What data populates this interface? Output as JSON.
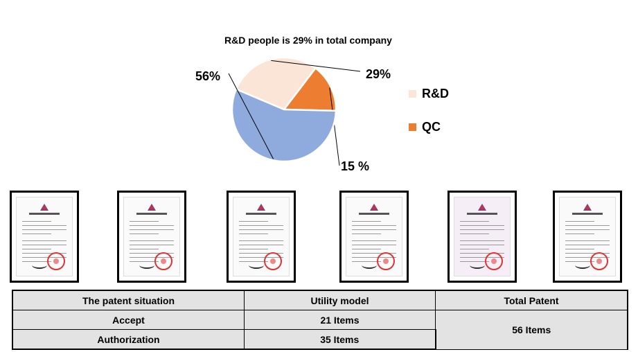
{
  "chart_data": {
    "type": "pie",
    "title": "R&D people is 29% in total company",
    "slices": [
      {
        "name": "R&D",
        "value": 29,
        "label": "29%",
        "color": "#fbe5d6"
      },
      {
        "name": "QC",
        "value": 15,
        "label": "15 %",
        "color": "#ed7d31"
      },
      {
        "name": "",
        "value": 56,
        "label": "56%",
        "color": "#8faadc"
      }
    ],
    "legend": {
      "position": "right",
      "entries": [
        "R&D",
        "QC"
      ]
    }
  },
  "certificates": [
    {
      "type": "patent-certificate"
    },
    {
      "type": "patent-certificate"
    },
    {
      "type": "patent-certificate"
    },
    {
      "type": "patent-certificate"
    },
    {
      "type": "patent-certificate",
      "tint": "pink"
    },
    {
      "type": "patent-certificate"
    }
  ],
  "patent_table": {
    "headers": [
      "The patent situation",
      "Utility model",
      "Total Patent"
    ],
    "rows": [
      {
        "label": "Accept",
        "utility": "21 Items"
      },
      {
        "label": "Authorization",
        "utility": "35 Items"
      }
    ],
    "total": "56 Items"
  }
}
